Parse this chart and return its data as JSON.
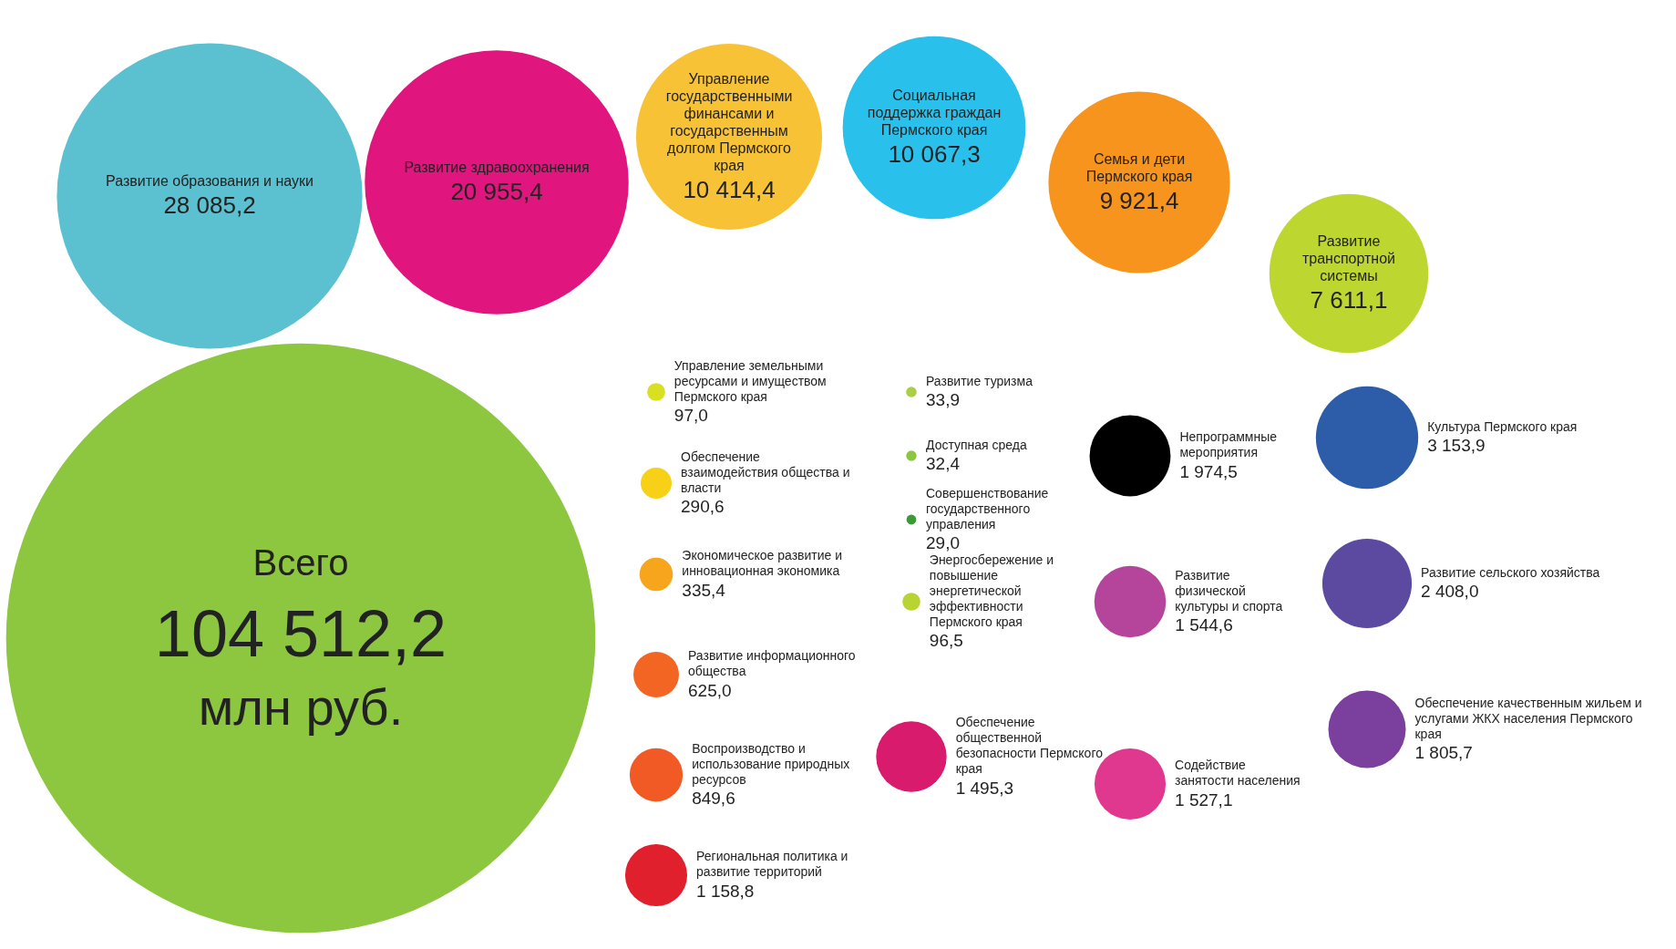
{
  "chart_data": {
    "type": "other",
    "categories": [
      "Всего",
      "Развитие образования и науки",
      "Развитие здравоохранения",
      "Управление государственными финансами и государственным долгом Пермского края",
      "Социальная поддержка граждан Пермского края",
      "Семья и дети Пермского края",
      "Развитие транспортной системы",
      "Управление земельными ресурсами и имуществом Пермского края",
      "Обеспечение взаимодействия общества и власти",
      "Экономическое развитие и инновационная экономика",
      "Развитие информационного общества",
      "Воспроизводство и использование природных ресурсов",
      "Региональная политика и развитие территорий",
      "Развитие туризма",
      "Доступная среда",
      "Совершенствование государственного управления",
      "Энергосбережение и повышение энергетической эффективности Пермского края",
      "Обеспечение общественной безопасности Пермского края",
      "Непрограммные мероприятия",
      "Развитие физической культуры и спорта",
      "Содействие занятости населения",
      "Культура Пермского края",
      "Развитие сельского хозяйства",
      "Обеспечение качественным жильем и услугами ЖКХ населения Пермского края"
    ],
    "values": [
      104512.2,
      28085.2,
      20955.4,
      10414.4,
      10067.3,
      9921.4,
      7611.1,
      97.0,
      290.6,
      335.4,
      625.0,
      849.6,
      1158.8,
      33.9,
      32.4,
      29.0,
      96.5,
      1495.3,
      1974.5,
      1544.6,
      1527.1,
      3153.9,
      2408.0,
      1805.7
    ],
    "value_labels": [
      "104 512,2",
      "28 085,2",
      "20 955,4",
      "10 414,4",
      "10 067,3",
      "9 921,4",
      "7 611,1",
      "97,0",
      "290,6",
      "335,4",
      "625,0",
      "849,6",
      "1 158,8",
      "33,9",
      "32,4",
      "29,0",
      "96,5",
      "1 495,3",
      "1 974,5",
      "1 544,6",
      "1 527,1",
      "3 153,9",
      "2 408,0",
      "1 805,7"
    ],
    "colors": [
      "#8dc63f",
      "#5bc0cf",
      "#e0157e",
      "#f7c236",
      "#29c0ec",
      "#f7941d",
      "#bdd630",
      "#d9e021",
      "#f7d117",
      "#f7a51d",
      "#f26522",
      "#f15a24",
      "#e0202c",
      "#a8cf45",
      "#8dc63f",
      "#3a9a35",
      "#b8d433",
      "#d81b6d",
      "#000000",
      "#b5459b",
      "#e0388f",
      "#2d5ca8",
      "#5b4aa0",
      "#7b3f9e"
    ],
    "annotations": [
      "млн руб."
    ]
  }
}
